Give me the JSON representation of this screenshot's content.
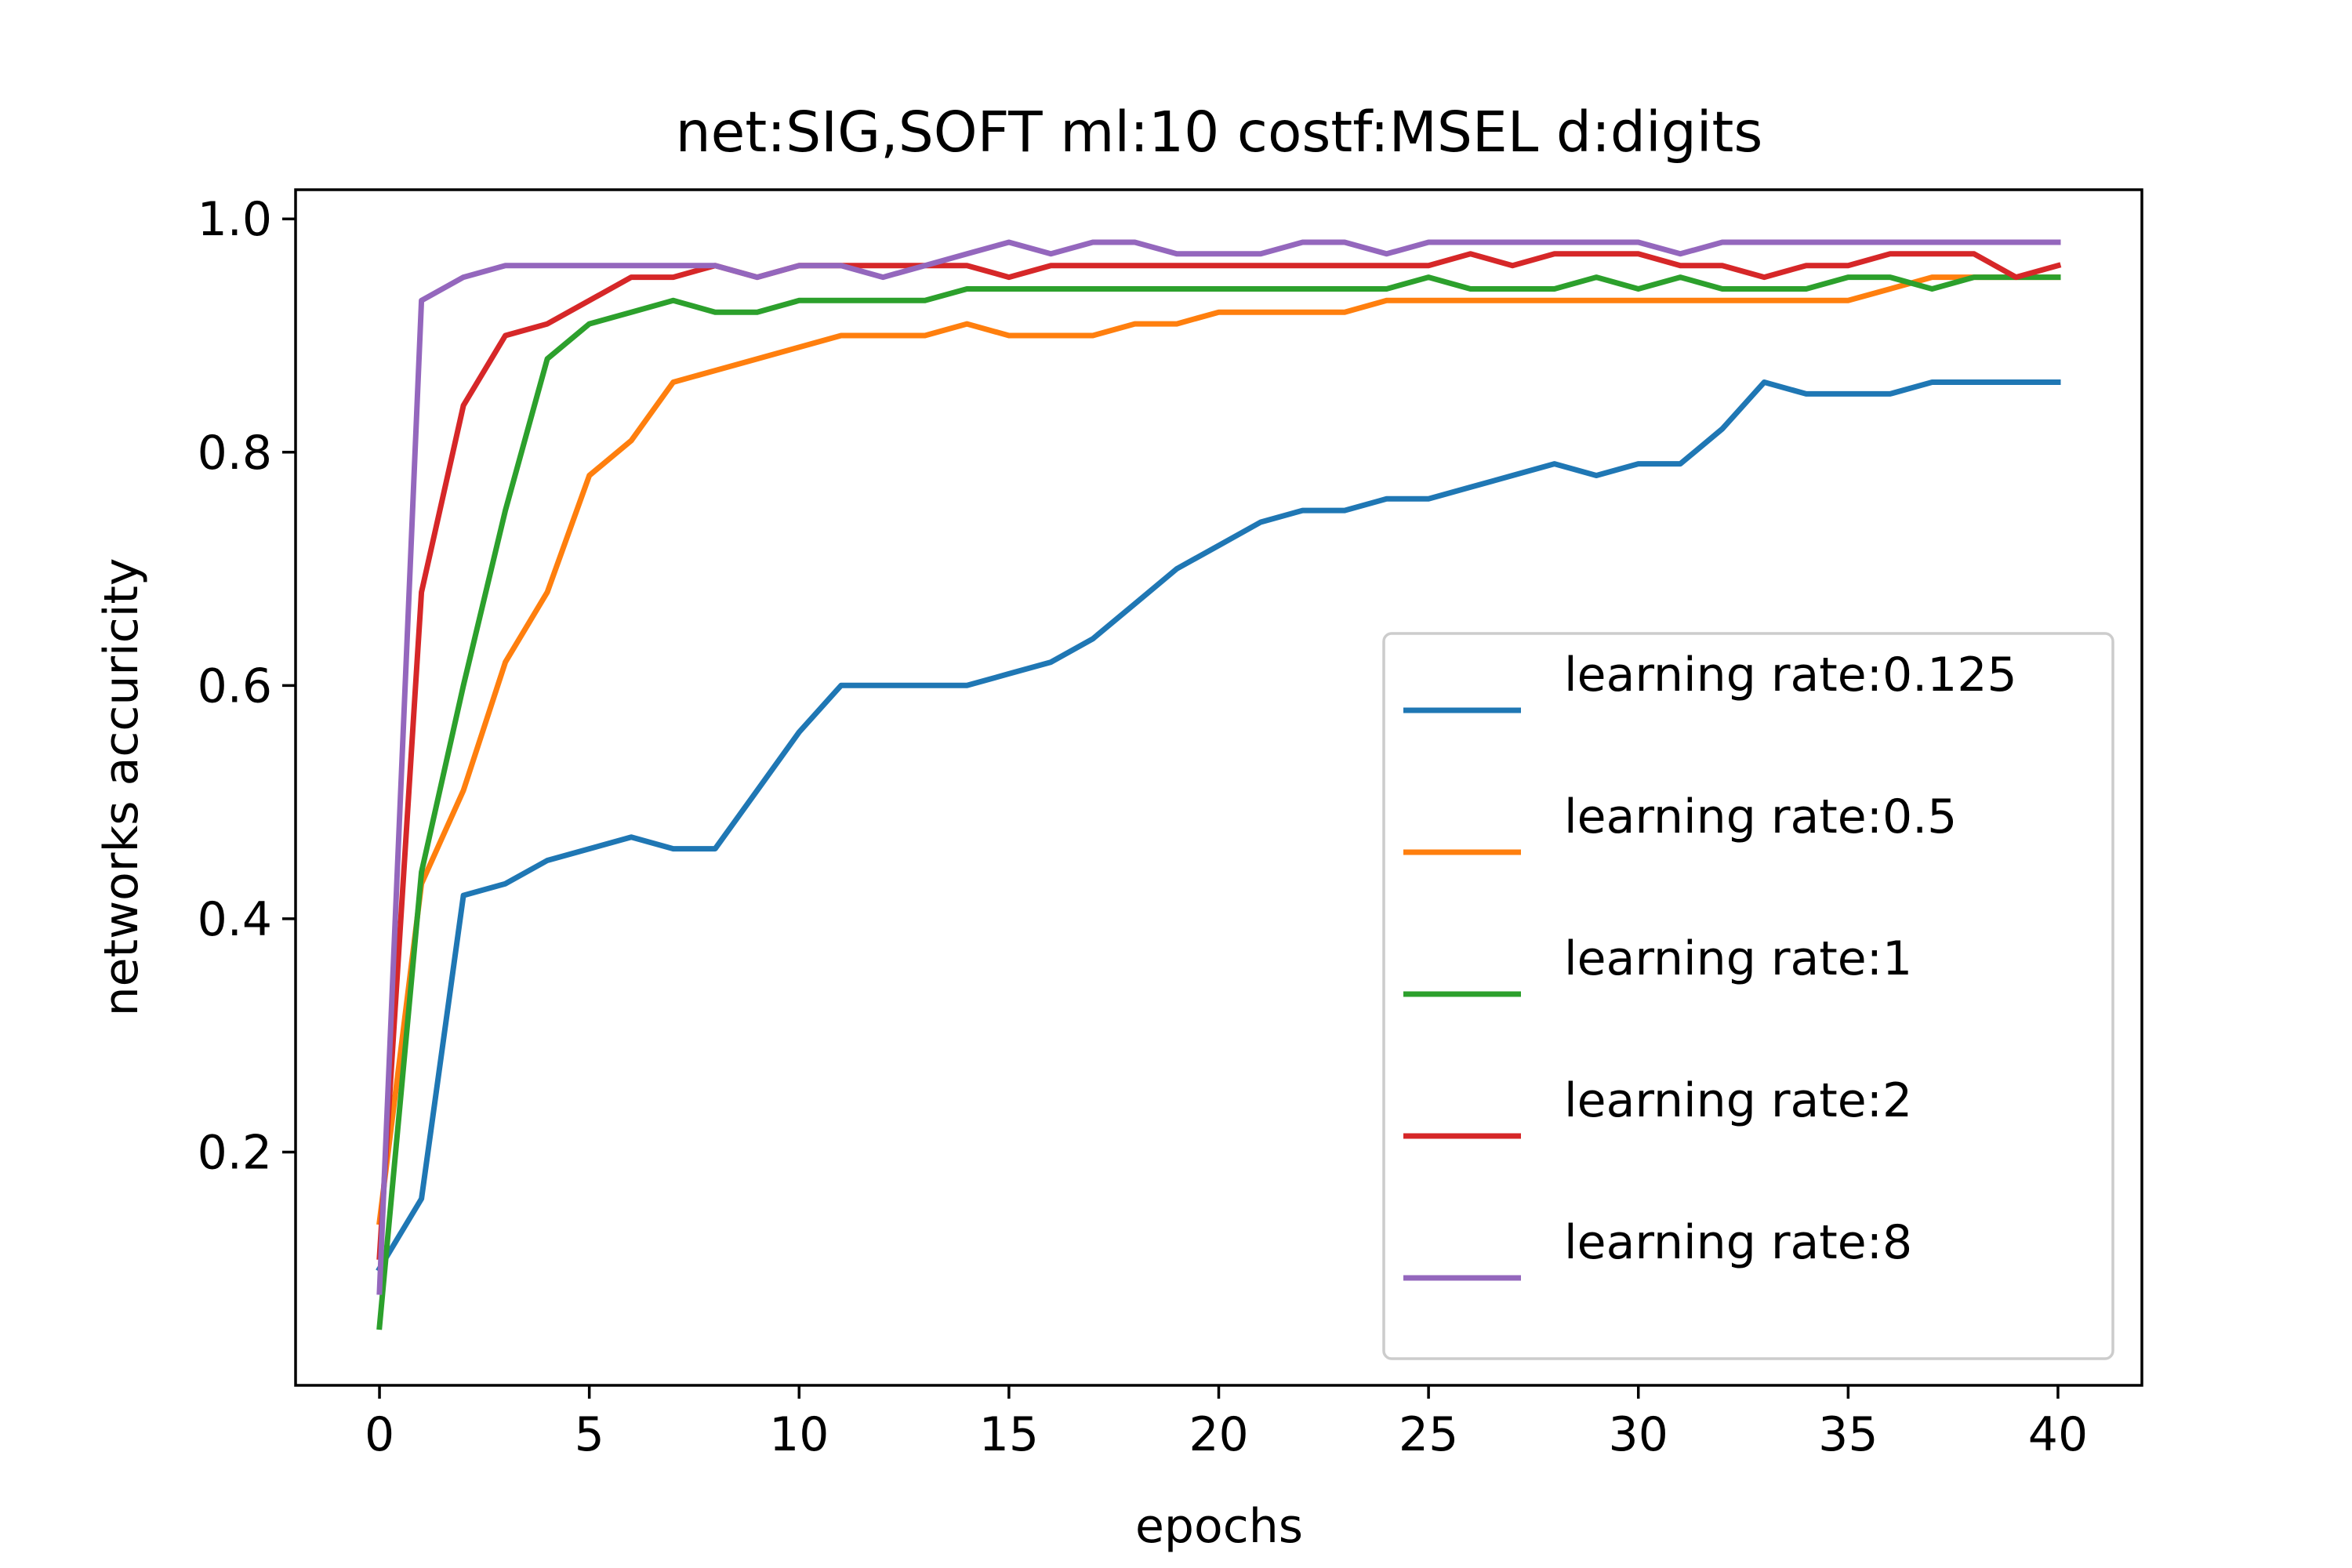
{
  "chart_data": {
    "type": "line",
    "title": "net:SIG,SOFT ml:10 costf:MSEL d:digits",
    "xlabel": "epochs",
    "ylabel": "networks accuricity",
    "xlim": [
      -2,
      42
    ],
    "ylim": [
      0,
      1.025
    ],
    "xticks": [
      0,
      5,
      10,
      15,
      20,
      25,
      30,
      35,
      40
    ],
    "yticks": [
      0.2,
      0.4,
      0.6,
      0.8,
      1.0
    ],
    "xtick_labels": [
      "0",
      "5",
      "10",
      "15",
      "20",
      "25",
      "30",
      "35",
      "40"
    ],
    "ytick_labels": [
      "0.2",
      "0.4",
      "0.6",
      "0.8",
      "1.0"
    ],
    "grid": false,
    "legend_position": "center-right",
    "x": [
      0,
      1,
      2,
      3,
      4,
      5,
      6,
      7,
      8,
      9,
      10,
      11,
      12,
      13,
      14,
      15,
      16,
      17,
      18,
      19,
      20,
      21,
      22,
      23,
      24,
      25,
      26,
      27,
      28,
      29,
      30,
      31,
      32,
      33,
      34,
      35,
      36,
      37,
      38,
      39,
      40
    ],
    "series": [
      {
        "name": "learning rate:0.125",
        "color": "#1f77b4",
        "values": [
          0.1,
          0.16,
          0.42,
          0.43,
          0.45,
          0.46,
          0.47,
          0.46,
          0.46,
          0.51,
          0.56,
          0.6,
          0.6,
          0.6,
          0.6,
          0.61,
          0.62,
          0.64,
          0.67,
          0.7,
          0.72,
          0.74,
          0.75,
          0.75,
          0.76,
          0.76,
          0.77,
          0.78,
          0.79,
          0.78,
          0.79,
          0.79,
          0.82,
          0.86,
          0.85,
          0.85,
          0.85,
          0.86,
          0.86,
          0.86,
          0.86
        ]
      },
      {
        "name": "learning rate:0.5",
        "color": "#ff7f0e",
        "values": [
          0.14,
          0.43,
          0.51,
          0.62,
          0.68,
          0.78,
          0.81,
          0.86,
          0.87,
          0.88,
          0.89,
          0.9,
          0.9,
          0.9,
          0.91,
          0.9,
          0.9,
          0.9,
          0.91,
          0.91,
          0.92,
          0.92,
          0.92,
          0.92,
          0.93,
          0.93,
          0.93,
          0.93,
          0.93,
          0.93,
          0.93,
          0.93,
          0.93,
          0.93,
          0.93,
          0.93,
          0.94,
          0.95,
          0.95,
          0.95,
          0.95
        ]
      },
      {
        "name": "learning rate:1",
        "color": "#2ca02c",
        "values": [
          0.05,
          0.44,
          0.6,
          0.75,
          0.88,
          0.91,
          0.92,
          0.93,
          0.92,
          0.92,
          0.93,
          0.93,
          0.93,
          0.93,
          0.94,
          0.94,
          0.94,
          0.94,
          0.94,
          0.94,
          0.94,
          0.94,
          0.94,
          0.94,
          0.94,
          0.95,
          0.94,
          0.94,
          0.94,
          0.95,
          0.94,
          0.95,
          0.94,
          0.94,
          0.94,
          0.95,
          0.95,
          0.94,
          0.95,
          0.95,
          0.95
        ]
      },
      {
        "name": "learning rate:2",
        "color": "#d62728",
        "values": [
          0.11,
          0.68,
          0.84,
          0.9,
          0.91,
          0.93,
          0.95,
          0.95,
          0.96,
          0.95,
          0.96,
          0.96,
          0.96,
          0.96,
          0.96,
          0.95,
          0.96,
          0.96,
          0.96,
          0.96,
          0.96,
          0.96,
          0.96,
          0.96,
          0.96,
          0.96,
          0.97,
          0.96,
          0.97,
          0.97,
          0.97,
          0.96,
          0.96,
          0.95,
          0.96,
          0.96,
          0.97,
          0.97,
          0.97,
          0.95,
          0.96
        ]
      },
      {
        "name": "learning rate:8",
        "color": "#9467bd",
        "values": [
          0.08,
          0.93,
          0.95,
          0.96,
          0.96,
          0.96,
          0.96,
          0.96,
          0.96,
          0.95,
          0.96,
          0.96,
          0.95,
          0.96,
          0.97,
          0.98,
          0.97,
          0.98,
          0.98,
          0.97,
          0.97,
          0.97,
          0.98,
          0.98,
          0.97,
          0.98,
          0.98,
          0.98,
          0.98,
          0.98,
          0.98,
          0.97,
          0.98,
          0.98,
          0.98,
          0.98,
          0.98,
          0.98,
          0.98,
          0.98,
          0.98
        ]
      }
    ]
  }
}
